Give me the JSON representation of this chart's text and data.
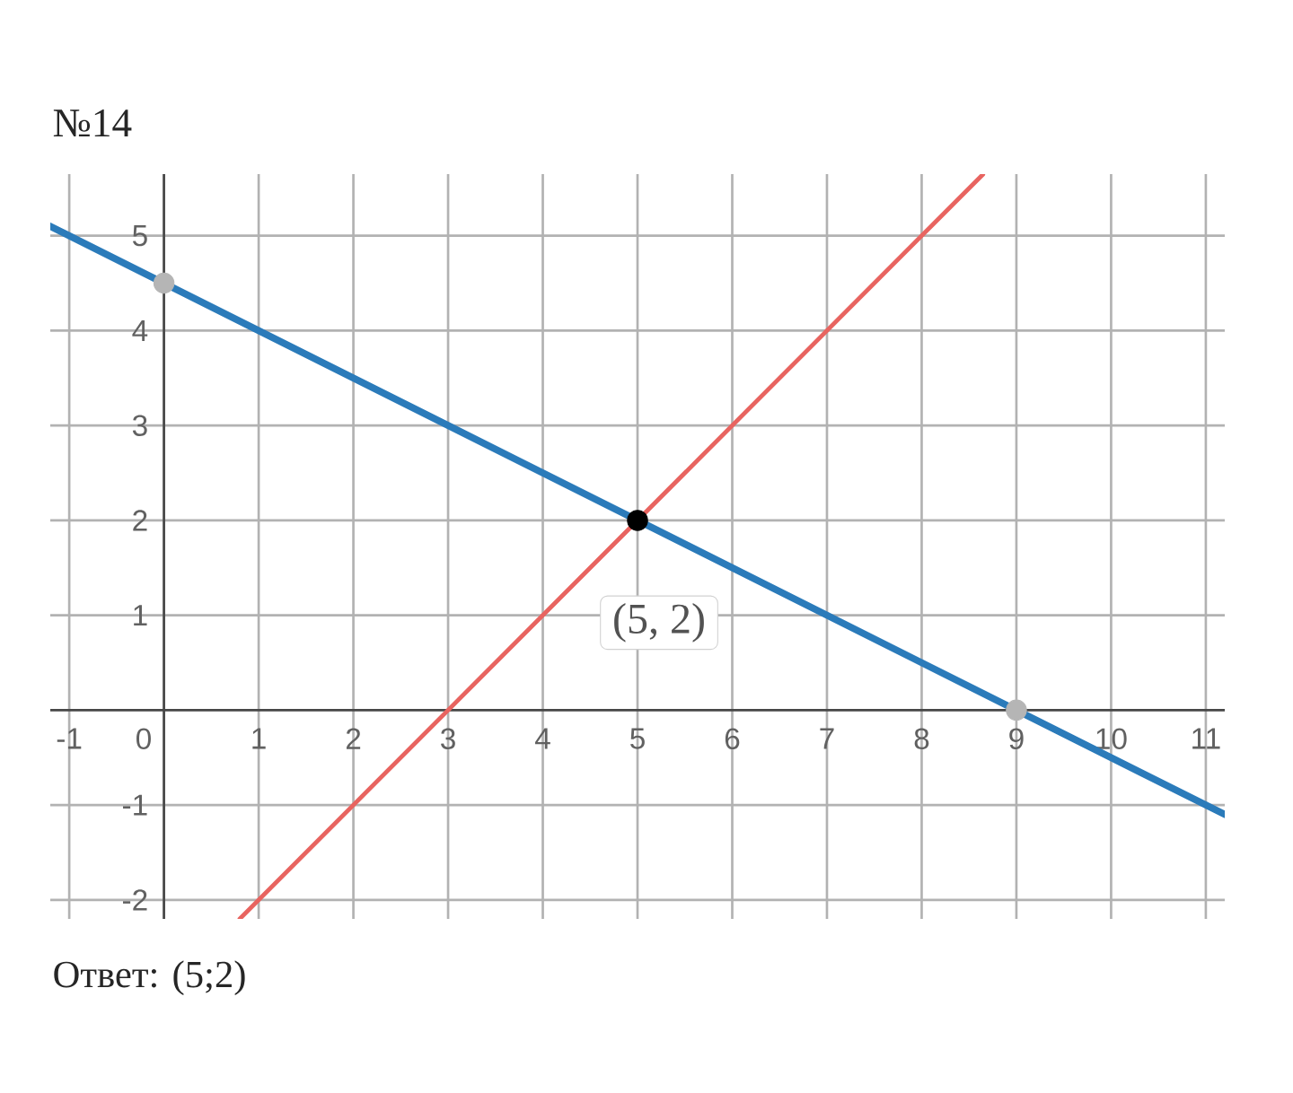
{
  "chart_data": {
    "type": "line",
    "title": "№14",
    "annotations": [
      {
        "text": "(5, 2)",
        "x": 5,
        "y": 2
      },
      "Ответ: (5;2)"
    ],
    "series": [
      {
        "x": [
          -1.2,
          11.2
        ],
        "values": [
          5.1,
          -1.1
        ],
        "color": "#2b7bba"
      },
      {
        "x": [
          0.8,
          8.65
        ],
        "values": [
          -2.2,
          5.65
        ],
        "color": "#e86460"
      },
      {
        "type": "scatter",
        "x": [
          0,
          5,
          9
        ],
        "values": [
          4.5,
          2,
          0
        ],
        "colors": [
          "#b5b5b5",
          "#000000",
          "#b5b5b5"
        ]
      }
    ],
    "xlim": [
      -1.2,
      11.2
    ],
    "ylim": [
      -2.2,
      5.65
    ],
    "xticks": [
      -1,
      0,
      1,
      2,
      3,
      4,
      5,
      6,
      7,
      8,
      9,
      10,
      11
    ],
    "yticks": [
      -2,
      -1,
      1,
      2,
      3,
      4,
      5
    ],
    "grid": true
  }
}
